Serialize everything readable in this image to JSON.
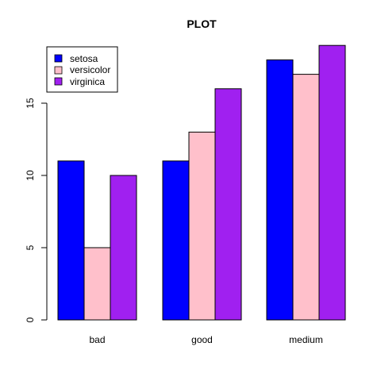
{
  "chart_data": {
    "type": "bar",
    "title": "PLOT",
    "xlabel": "",
    "ylabel": "",
    "categories": [
      "bad",
      "good",
      "medium"
    ],
    "series": [
      {
        "name": "setosa",
        "color": "#0000ff",
        "values": [
          11,
          11,
          18
        ]
      },
      {
        "name": "versicolor",
        "color": "#ffc0cb",
        "values": [
          5,
          13,
          17
        ]
      },
      {
        "name": "virginica",
        "color": "#a020f0",
        "values": [
          10,
          16,
          19
        ]
      }
    ],
    "ylim": [
      0,
      19
    ],
    "yticks": [
      "0",
      "5",
      "10",
      "15"
    ],
    "grid": false,
    "legend_position": "top-left"
  }
}
